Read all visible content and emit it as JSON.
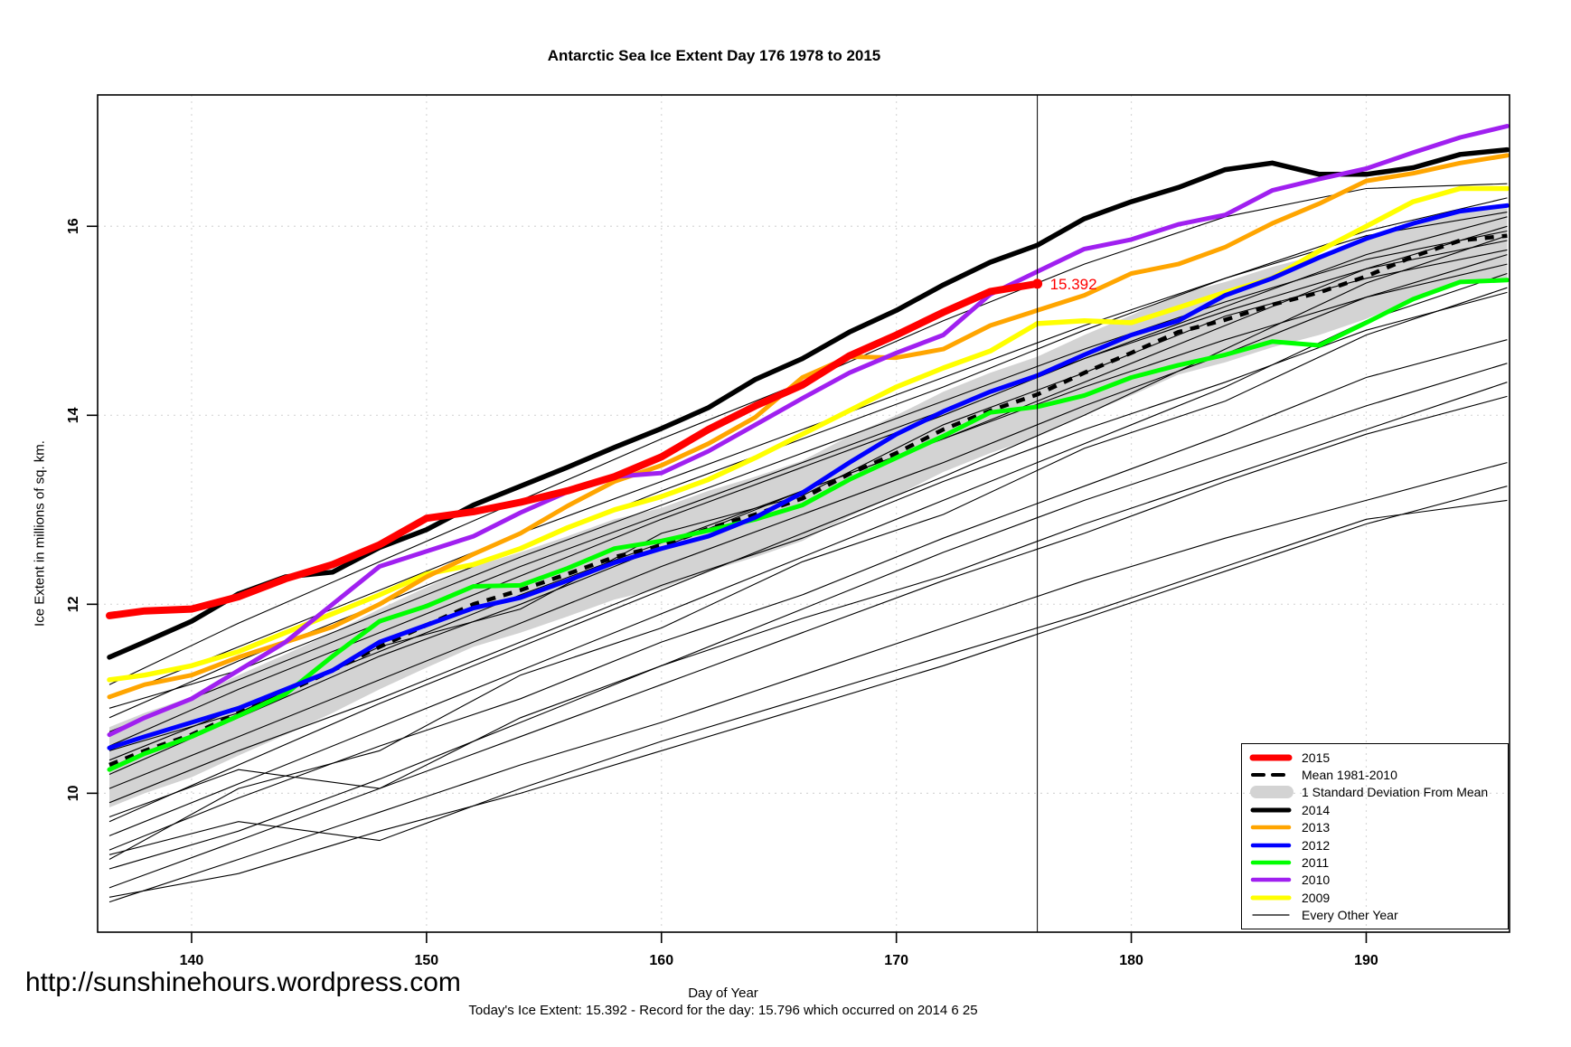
{
  "header": {
    "title": "Antarctic Sea Ice Extent Day 176 1978 to 2015"
  },
  "footer": {
    "url": "http://sunshinehours.wordpress.com",
    "caption": "Today's Ice Extent: 15.392  - Record for the day: 15.796 which occurred on 2014 6 25"
  },
  "colors": {
    "red": "#FF0000",
    "black": "#000000",
    "orange": "#FFA500",
    "blue": "#0000FF",
    "green": "#00FF00",
    "purple": "#A020F0",
    "yellow": "#FFFF00",
    "band": "#D3D3D3",
    "grid": "#D8D8D8",
    "annotation": "#FF0000"
  },
  "legend": {
    "items": [
      {
        "label": "2015",
        "swatch": "line",
        "color": "#FF0000",
        "width": 7
      },
      {
        "label": "Mean 1981-2010",
        "swatch": "dashed",
        "color": "#000000",
        "width": 4
      },
      {
        "label": "1 Standard Deviation From Mean",
        "swatch": "band",
        "color": "#D3D3D3"
      },
      {
        "label": "2014",
        "swatch": "line",
        "color": "#000000",
        "width": 5
      },
      {
        "label": "2013",
        "swatch": "line",
        "color": "#FFA500",
        "width": 4.5
      },
      {
        "label": "2012",
        "swatch": "line",
        "color": "#0000FF",
        "width": 4.5
      },
      {
        "label": "2011",
        "swatch": "line",
        "color": "#00FF00",
        "width": 4.5
      },
      {
        "label": "2010",
        "swatch": "line",
        "color": "#A020F0",
        "width": 4.5
      },
      {
        "label": "2009",
        "swatch": "line",
        "color": "#FFFF00",
        "width": 5
      },
      {
        "label": "Every Other Year",
        "swatch": "line",
        "color": "#000000",
        "width": 1.2
      }
    ]
  },
  "chart_data": {
    "type": "line",
    "title": "Antarctic Sea Ice Extent Day 176 1978 to 2015",
    "xlabel": "Day of Year",
    "ylabel": "Ice Extent in millions of sq. km.",
    "xlim": [
      136,
      196.1
    ],
    "ylim": [
      8.53,
      17.39
    ],
    "xticks": [
      140,
      150,
      160,
      170,
      180,
      190
    ],
    "yticks": [
      10,
      12,
      14,
      16
    ],
    "grid": "dotted",
    "legend_position": "bottom-right",
    "vline_day": 176,
    "annotation": {
      "day": 176,
      "value": 15.392,
      "label": "15.392"
    },
    "x": [
      136.5,
      138,
      140,
      142,
      144,
      146,
      148,
      150,
      152,
      154,
      156,
      158,
      160,
      162,
      164,
      166,
      168,
      170,
      172,
      174,
      176,
      178,
      180,
      182,
      184,
      186,
      188,
      190,
      192,
      194,
      196
    ],
    "band": {
      "name": "1 Standard Deviation From Mean",
      "upper": [
        10.7,
        10.85,
        11.02,
        11.25,
        11.47,
        11.7,
        11.95,
        12.18,
        12.4,
        12.55,
        12.72,
        12.9,
        13.02,
        13.2,
        13.35,
        13.52,
        13.78,
        14.0,
        14.25,
        14.45,
        14.62,
        14.85,
        15.06,
        15.28,
        15.41,
        15.57,
        15.7,
        15.87,
        16.04,
        16.16,
        16.2
      ],
      "lower": [
        9.85,
        10.0,
        10.17,
        10.4,
        10.62,
        10.85,
        11.1,
        11.33,
        11.55,
        11.7,
        11.87,
        12.05,
        12.17,
        12.35,
        12.5,
        12.67,
        12.93,
        13.15,
        13.4,
        13.6,
        13.77,
        14.0,
        14.21,
        14.43,
        14.56,
        14.72,
        14.85,
        15.02,
        15.23,
        15.4,
        15.45
      ]
    },
    "mean": {
      "name": "Mean 1981-2010",
      "values": [
        10.3,
        10.45,
        10.62,
        10.85,
        11.07,
        11.3,
        11.55,
        11.78,
        12.0,
        12.15,
        12.32,
        12.5,
        12.62,
        12.8,
        12.95,
        13.12,
        13.38,
        13.6,
        13.85,
        14.05,
        14.22,
        14.45,
        14.66,
        14.88,
        15.01,
        15.17,
        15.3,
        15.47,
        15.68,
        15.85,
        15.9
      ]
    },
    "series": [
      {
        "name": "2009",
        "color": "#FFFF00",
        "width": 5.5,
        "values": [
          11.2,
          11.25,
          11.35,
          11.5,
          11.7,
          11.9,
          12.1,
          12.32,
          12.42,
          12.59,
          12.81,
          13.0,
          13.14,
          13.32,
          13.55,
          13.8,
          14.05,
          14.3,
          14.5,
          14.68,
          14.97,
          15.0,
          14.98,
          15.14,
          15.3,
          15.45,
          15.74,
          16.0,
          16.26,
          16.4,
          16.4
        ]
      },
      {
        "name": "2011",
        "color": "#00FF00",
        "width": 5,
        "values": [
          10.25,
          10.42,
          10.6,
          10.82,
          11.05,
          11.45,
          11.82,
          11.98,
          12.19,
          12.2,
          12.38,
          12.59,
          12.67,
          12.78,
          12.9,
          13.05,
          13.32,
          13.55,
          13.78,
          14.03,
          14.09,
          14.21,
          14.4,
          14.53,
          14.64,
          14.78,
          14.74,
          14.98,
          15.23,
          15.41,
          15.43
        ]
      },
      {
        "name": "2012",
        "color": "#0000FF",
        "width": 5,
        "values": [
          10.48,
          10.6,
          10.75,
          10.9,
          11.1,
          11.3,
          11.6,
          11.78,
          11.96,
          12.07,
          12.25,
          12.44,
          12.59,
          12.72,
          12.92,
          13.18,
          13.5,
          13.8,
          14.04,
          14.25,
          14.42,
          14.64,
          14.85,
          15.0,
          15.27,
          15.45,
          15.67,
          15.87,
          16.03,
          16.16,
          16.22
        ]
      },
      {
        "name": "2013",
        "color": "#FFA500",
        "width": 5,
        "values": [
          11.02,
          11.15,
          11.25,
          11.44,
          11.6,
          11.76,
          12.0,
          12.29,
          12.53,
          12.75,
          13.04,
          13.3,
          13.47,
          13.7,
          13.98,
          14.4,
          14.62,
          14.61,
          14.7,
          14.95,
          15.11,
          15.27,
          15.5,
          15.6,
          15.78,
          16.03,
          16.24,
          16.48,
          16.56,
          16.67,
          16.75
        ]
      },
      {
        "name": "2014",
        "color": "#000000",
        "width": 5.5,
        "values": [
          11.44,
          11.6,
          11.82,
          12.11,
          12.29,
          12.34,
          12.6,
          12.79,
          13.05,
          13.25,
          13.45,
          13.66,
          13.86,
          14.08,
          14.38,
          14.6,
          14.88,
          15.11,
          15.38,
          15.62,
          15.8,
          16.08,
          16.26,
          16.41,
          16.6,
          16.67,
          16.55,
          16.55,
          16.62,
          16.76,
          16.81
        ]
      },
      {
        "name": "2010",
        "color": "#A020F0",
        "width": 5,
        "values": [
          10.62,
          10.8,
          11.0,
          11.3,
          11.6,
          12.0,
          12.4,
          12.56,
          12.72,
          12.97,
          13.19,
          13.35,
          13.39,
          13.62,
          13.9,
          14.18,
          14.45,
          14.66,
          14.85,
          15.28,
          15.52,
          15.76,
          15.86,
          16.02,
          16.12,
          16.38,
          16.5,
          16.61,
          16.78,
          16.94,
          17.06
        ]
      },
      {
        "name": "2015",
        "color": "#FF0000",
        "width": 8,
        "end_dot": true,
        "values": [
          11.88,
          11.93,
          11.95,
          12.08,
          12.27,
          12.42,
          12.63,
          12.91,
          12.98,
          13.08,
          13.2,
          13.35,
          13.56,
          13.85,
          14.1,
          14.32,
          14.63,
          14.85,
          15.09,
          15.31,
          15.392,
          null,
          null,
          null,
          null,
          null,
          null,
          null,
          null,
          null,
          null
        ]
      }
    ],
    "thin": {
      "name": "Every Other Year",
      "color": "#000000",
      "x": [
        136.5,
        142,
        148,
        154,
        160,
        166,
        172,
        178,
        184,
        190,
        196
      ],
      "lines": [
        [
          8.85,
          9.3,
          9.8,
          10.3,
          10.75,
          11.25,
          11.75,
          12.25,
          12.7,
          13.1,
          13.5
        ],
        [
          9.0,
          9.5,
          10.05,
          10.6,
          11.15,
          11.7,
          12.25,
          12.75,
          13.3,
          13.8,
          14.2
        ],
        [
          9.2,
          9.6,
          10.15,
          10.75,
          11.35,
          11.95,
          12.55,
          13.1,
          13.6,
          14.1,
          14.55
        ],
        [
          9.4,
          9.95,
          10.5,
          11.0,
          11.6,
          12.1,
          12.7,
          13.25,
          13.8,
          14.4,
          14.8
        ],
        [
          9.55,
          10.1,
          10.7,
          11.3,
          11.9,
          12.5,
          13.1,
          13.7,
          14.3,
          15.0,
          15.5
        ],
        [
          9.7,
          10.3,
          10.95,
          11.55,
          12.15,
          12.75,
          13.35,
          14.0,
          14.7,
          15.4,
          15.9
        ],
        [
          9.9,
          10.45,
          11.0,
          11.6,
          12.2,
          12.7,
          13.3,
          13.85,
          14.35,
          14.9,
          15.3
        ],
        [
          10.05,
          10.6,
          11.2,
          11.8,
          12.4,
          12.95,
          13.5,
          14.1,
          14.65,
          15.25,
          15.7
        ],
        [
          10.2,
          10.8,
          11.45,
          12.0,
          12.6,
          13.2,
          13.75,
          14.35,
          14.95,
          15.55,
          16.0
        ],
        [
          10.35,
          10.9,
          11.5,
          12.1,
          12.65,
          13.2,
          13.75,
          14.3,
          14.8,
          15.25,
          15.6
        ],
        [
          10.5,
          11.1,
          11.7,
          12.3,
          12.9,
          13.45,
          14.0,
          14.6,
          15.15,
          15.7,
          16.1
        ],
        [
          10.65,
          11.2,
          11.8,
          12.4,
          12.95,
          13.5,
          14.05,
          14.6,
          15.1,
          15.55,
          15.85
        ],
        [
          10.8,
          11.4,
          12.0,
          12.6,
          13.2,
          13.75,
          14.3,
          14.9,
          15.45,
          15.95,
          16.3
        ],
        [
          10.9,
          11.3,
          11.9,
          12.5,
          13.05,
          13.6,
          14.15,
          14.7,
          15.2,
          15.65,
          15.95
        ],
        [
          11.0,
          11.55,
          12.15,
          12.75,
          13.3,
          13.85,
          14.4,
          14.95,
          15.45,
          15.9,
          16.15
        ],
        [
          11.15,
          11.8,
          12.45,
          13.1,
          13.75,
          14.35,
          15.0,
          15.6,
          16.1,
          16.4,
          16.45
        ],
        [
          9.75,
          10.25,
          10.05,
          10.8,
          11.35,
          11.85,
          12.3,
          12.85,
          13.35,
          13.85,
          14.35
        ],
        [
          10.45,
          10.85,
          11.55,
          11.95,
          12.75,
          13.15,
          13.9,
          14.45,
          15.05,
          15.45,
          15.75
        ],
        [
          9.3,
          10.05,
          10.45,
          11.25,
          11.75,
          12.45,
          12.95,
          13.65,
          14.15,
          14.85,
          15.35
        ],
        [
          8.9,
          9.15,
          9.6,
          10.0,
          10.45,
          10.9,
          11.35,
          11.85,
          12.35,
          12.85,
          13.25
        ],
        [
          9.35,
          9.7,
          9.5,
          10.05,
          10.55,
          11.0,
          11.45,
          11.9,
          12.4,
          12.9,
          13.1
        ]
      ]
    }
  }
}
